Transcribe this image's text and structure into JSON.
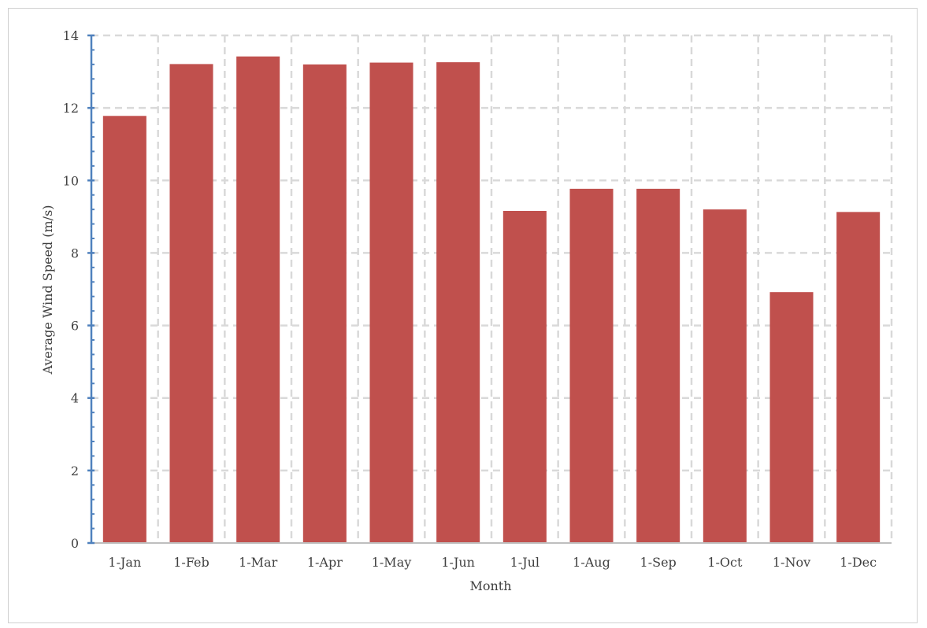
{
  "chart_data": {
    "type": "bar",
    "categories": [
      "1-Jan",
      "1-Feb",
      "1-Mar",
      "1-Apr",
      "1-May",
      "1-Jun",
      "1-Jul",
      "1-Aug",
      "1-Sep",
      "1-Oct",
      "1-Nov",
      "1-Dec"
    ],
    "series": [
      {
        "values": [
          11.78,
          13.21,
          13.42,
          13.2,
          13.25,
          13.26,
          9.16,
          9.77,
          9.77,
          9.2,
          6.92,
          9.13
        ]
      }
    ],
    "xlabel": "Month",
    "ylabel": "Average Wind Speed (m/s)",
    "ylim": [
      0,
      14
    ],
    "yticks": [
      0,
      2,
      4,
      6,
      8,
      10,
      12,
      14
    ],
    "grid": true,
    "legend": "none",
    "colors": {
      "bar": "#c0504d",
      "grid": "#d9d9d9",
      "y_axis": "#4f81bd",
      "x_axis": "#bfbfbf",
      "text": "#404040"
    }
  }
}
